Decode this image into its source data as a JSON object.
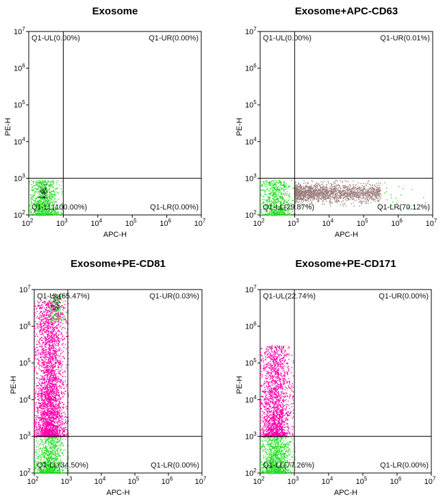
{
  "chart_data": [
    {
      "type": "scatter",
      "title": "Exosome",
      "xlabel": "APC-H",
      "ylabel": "PE-H",
      "xscale": "log",
      "yscale": "log",
      "xlim": [
        100,
        10000000
      ],
      "ylim": [
        100,
        10000000
      ],
      "x_ticks": [
        "10",
        "10",
        "10",
        "10",
        "10",
        "10"
      ],
      "x_tick_exps": [
        "2",
        "3",
        "4",
        "5",
        "6",
        "7"
      ],
      "y_ticks": [
        "10",
        "10",
        "10",
        "10",
        "10",
        "10"
      ],
      "y_tick_exps": [
        "2",
        "3",
        "4",
        "5",
        "6",
        "7"
      ],
      "gate": {
        "x": 1000,
        "y": 1000
      },
      "quadrants": {
        "UL": "Q1-UL(0.00%)",
        "UR": "Q1-UR(0.00%)",
        "LL": "Q1-LL(100.00%)",
        "LR": "Q1-LR(0.00%)"
      },
      "percentages": {
        "UL": 0.0,
        "UR": 0.0,
        "LL": 100.0,
        "LR": 0.0
      },
      "populations": [
        {
          "color": "#22dd22",
          "n": 900,
          "x_range": [
            100,
            900
          ],
          "y_range": [
            100,
            900
          ]
        },
        {
          "color": "#1a1a1a",
          "n": 40,
          "x_range": [
            180,
            380
          ],
          "y_range": [
            300,
            700
          ]
        }
      ]
    },
    {
      "type": "scatter",
      "title": "Exosome+APC-CD63",
      "xlabel": "APC-H",
      "ylabel": "PE-H",
      "xscale": "log",
      "yscale": "log",
      "xlim": [
        100,
        10000000
      ],
      "ylim": [
        100,
        10000000
      ],
      "x_ticks": [
        "10",
        "10",
        "10",
        "10",
        "10",
        "10"
      ],
      "x_tick_exps": [
        "2",
        "3",
        "4",
        "5",
        "6",
        "7"
      ],
      "y_ticks": [
        "10",
        "10",
        "10",
        "10",
        "10",
        "10"
      ],
      "y_tick_exps": [
        "2",
        "3",
        "4",
        "5",
        "6",
        "7"
      ],
      "gate": {
        "x": 1000,
        "y": 1000
      },
      "quadrants": {
        "UL": "Q1-UL(0.00%)",
        "UR": "Q1-UR(0.01%)",
        "LL": "Q1-LL(29.87%)",
        "LR": "Q1-LR(70.12%)"
      },
      "percentages": {
        "UL": 0.0,
        "UR": 0.01,
        "LL": 29.87,
        "LR": 70.12
      },
      "populations": [
        {
          "color": "#22dd22",
          "n": 700,
          "x_range": [
            100,
            1000
          ],
          "y_range": [
            100,
            900
          ]
        },
        {
          "color": "#9e7f7f",
          "n": 1800,
          "x_range": [
            1000,
            300000
          ],
          "y_range": [
            180,
            900
          ]
        },
        {
          "color": "#22dd22",
          "n": 30,
          "x_range": [
            100000,
            6000000
          ],
          "y_range": [
            150,
            900
          ]
        }
      ]
    },
    {
      "type": "scatter",
      "title": "Exosome+PE-CD81",
      "xlabel": "APC-H",
      "ylabel": "PE-H",
      "xscale": "log",
      "yscale": "log",
      "xlim": [
        100,
        10000000
      ],
      "ylim": [
        100,
        10000000
      ],
      "x_ticks": [
        "10",
        "10",
        "10",
        "10",
        "10",
        "10"
      ],
      "x_tick_exps": [
        "2",
        "3",
        "4",
        "5",
        "6",
        "7"
      ],
      "y_ticks": [
        "10",
        "10",
        "10",
        "10",
        "10",
        "10"
      ],
      "y_tick_exps": [
        "2",
        "3",
        "4",
        "5",
        "6",
        "7"
      ],
      "gate": {
        "x": 1000,
        "y": 1000
      },
      "quadrants": {
        "UL": "Q1-UL(65.47%)",
        "UR": "Q1-UR(0.03%)",
        "LL": "Q1-LL(34.50%)",
        "LR": "Q1-LR(0.00%)"
      },
      "percentages": {
        "UL": 65.47,
        "UR": 0.03,
        "LL": 34.5,
        "LR": 0.0
      },
      "populations": [
        {
          "color": "#22dd22",
          "n": 800,
          "x_range": [
            100,
            1000
          ],
          "y_range": [
            100,
            1000
          ]
        },
        {
          "color": "#ff00aa",
          "n": 3200,
          "x_range": [
            100,
            1000
          ],
          "y_range": [
            1000,
            5000000
          ]
        },
        {
          "color": "#22dd22",
          "n": 120,
          "x_range": [
            250,
            900
          ],
          "y_range": [
            1500000,
            8000000
          ]
        },
        {
          "color": "#1a1a1a",
          "n": 50,
          "x_range": [
            300,
            800
          ],
          "y_range": [
            3000000,
            8000000
          ]
        }
      ]
    },
    {
      "type": "scatter",
      "title": "Exosome+PE-CD171",
      "xlabel": "APC-H",
      "ylabel": "PE-H",
      "xscale": "log",
      "yscale": "log",
      "xlim": [
        100,
        10000000
      ],
      "ylim": [
        100,
        10000000
      ],
      "x_ticks": [
        "10",
        "10",
        "10",
        "10",
        "10",
        "10"
      ],
      "x_tick_exps": [
        "2",
        "3",
        "4",
        "5",
        "6",
        "7"
      ],
      "y_ticks": [
        "10",
        "10",
        "10",
        "10",
        "10",
        "10"
      ],
      "y_tick_exps": [
        "2",
        "3",
        "4",
        "5",
        "6",
        "7"
      ],
      "gate": {
        "x": 1000,
        "y": 1000
      },
      "quadrants": {
        "UL": "Q1-UL(22.74%)",
        "UR": "Q1-UR(0.00%)",
        "LL": "Q1-LL(77.26%)",
        "LR": "Q1-LR(0.00%)"
      },
      "percentages": {
        "UL": 22.74,
        "UR": 0.0,
        "LL": 77.26,
        "LR": 0.0
      },
      "populations": [
        {
          "color": "#22dd22",
          "n": 1000,
          "x_range": [
            100,
            1000
          ],
          "y_range": [
            100,
            1000
          ]
        },
        {
          "color": "#ff00aa",
          "n": 1800,
          "x_range": [
            100,
            900
          ],
          "y_range": [
            1000,
            300000
          ]
        }
      ]
    }
  ]
}
